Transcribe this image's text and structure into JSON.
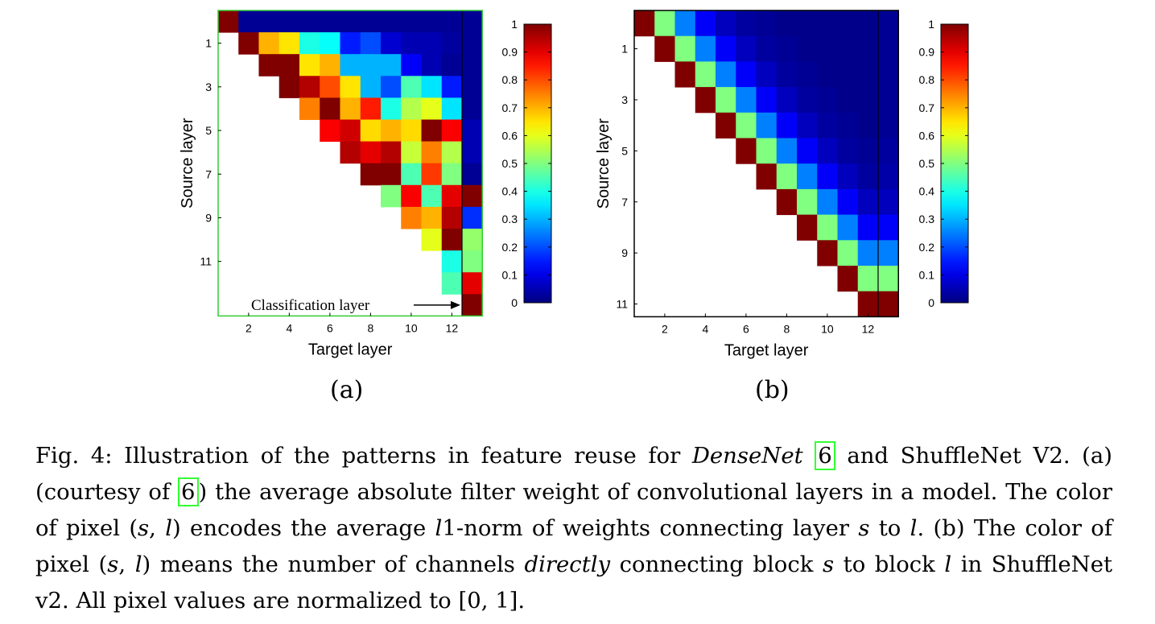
{
  "chart_data": [
    {
      "type": "heatmap",
      "panel": "(a)",
      "xlabel": "Target layer",
      "ylabel": "Source layer",
      "x_ticks": [
        "2",
        "4",
        "6",
        "8",
        "10",
        "12"
      ],
      "y_ticks": [
        "1",
        "3",
        "5",
        "7",
        "9",
        "11"
      ],
      "colorbar": {
        "min": 0,
        "max": 1,
        "ticks": [
          "0",
          "0.1",
          "0.2",
          "0.3",
          "0.4",
          "0.5",
          "0.6",
          "0.7",
          "0.8",
          "0.9",
          "1"
        ]
      },
      "annotation": "Classification layer",
      "values": [
        [
          1.0,
          0.02,
          0.02,
          0.02,
          0.02,
          0.02,
          0.02,
          0.02,
          0.02,
          0.02,
          0.02,
          0.02,
          0.02
        ],
        [
          null,
          1.0,
          0.7,
          0.65,
          0.4,
          0.38,
          0.15,
          0.2,
          0.08,
          0.05,
          0.05,
          0.03,
          0.02
        ],
        [
          null,
          null,
          1.0,
          1.0,
          0.65,
          0.7,
          0.3,
          0.3,
          0.3,
          0.12,
          0.05,
          0.02,
          0.02
        ],
        [
          null,
          null,
          null,
          1.0,
          0.95,
          0.8,
          0.65,
          0.3,
          0.2,
          0.45,
          0.35,
          0.15,
          0.02
        ],
        [
          null,
          null,
          null,
          null,
          0.75,
          1.0,
          0.7,
          0.85,
          0.4,
          0.55,
          0.6,
          0.35,
          0.02
        ],
        [
          null,
          null,
          null,
          null,
          null,
          0.88,
          0.92,
          0.66,
          0.7,
          0.66,
          1.0,
          0.88,
          0.05
        ],
        [
          null,
          null,
          null,
          null,
          null,
          null,
          0.95,
          0.9,
          0.95,
          0.57,
          0.75,
          0.55,
          0.05
        ],
        [
          null,
          null,
          null,
          null,
          null,
          null,
          null,
          1.0,
          1.0,
          0.45,
          0.82,
          0.5,
          0.02
        ],
        [
          null,
          null,
          null,
          null,
          null,
          null,
          null,
          null,
          0.5,
          0.88,
          0.45,
          0.9,
          1.0
        ],
        [
          null,
          null,
          null,
          null,
          null,
          null,
          null,
          null,
          null,
          0.75,
          0.7,
          0.95,
          0.17
        ],
        [
          null,
          null,
          null,
          null,
          null,
          null,
          null,
          null,
          null,
          null,
          0.6,
          1.0,
          0.52
        ],
        [
          null,
          null,
          null,
          null,
          null,
          null,
          null,
          null,
          null,
          null,
          null,
          0.4,
          0.5
        ],
        [
          null,
          null,
          null,
          null,
          null,
          null,
          null,
          null,
          null,
          null,
          null,
          0.45,
          0.9
        ],
        [
          null,
          null,
          null,
          null,
          null,
          null,
          null,
          null,
          null,
          null,
          null,
          null,
          1.0
        ]
      ]
    },
    {
      "type": "heatmap",
      "panel": "(b)",
      "xlabel": "Target layer",
      "ylabel": "Source layer",
      "x_ticks": [
        "2",
        "4",
        "6",
        "8",
        "10",
        "12"
      ],
      "y_ticks": [
        "1",
        "3",
        "5",
        "7",
        "9",
        "11"
      ],
      "colorbar": {
        "min": 0,
        "max": 1,
        "ticks": [
          "0",
          "0.1",
          "0.2",
          "0.3",
          "0.4",
          "0.5",
          "0.6",
          "0.7",
          "0.8",
          "0.9",
          "1"
        ]
      },
      "values": [
        [
          1.0,
          0.5,
          0.25,
          0.12,
          0.06,
          0.03,
          0.02,
          0.01,
          0.01,
          0.01,
          0.01,
          0.01,
          0.02
        ],
        [
          null,
          1.0,
          0.5,
          0.25,
          0.12,
          0.06,
          0.03,
          0.02,
          0.01,
          0.01,
          0.01,
          0.01,
          0.02
        ],
        [
          null,
          null,
          1.0,
          0.5,
          0.25,
          0.12,
          0.06,
          0.03,
          0.02,
          0.01,
          0.01,
          0.01,
          0.02
        ],
        [
          null,
          null,
          null,
          1.0,
          0.5,
          0.25,
          0.12,
          0.06,
          0.03,
          0.02,
          0.01,
          0.01,
          0.02
        ],
        [
          null,
          null,
          null,
          null,
          1.0,
          0.5,
          0.25,
          0.12,
          0.06,
          0.03,
          0.02,
          0.01,
          0.02
        ],
        [
          null,
          null,
          null,
          null,
          null,
          1.0,
          0.5,
          0.25,
          0.12,
          0.06,
          0.03,
          0.02,
          0.03
        ],
        [
          null,
          null,
          null,
          null,
          null,
          null,
          1.0,
          0.5,
          0.25,
          0.12,
          0.06,
          0.03,
          0.04
        ],
        [
          null,
          null,
          null,
          null,
          null,
          null,
          null,
          1.0,
          0.5,
          0.25,
          0.12,
          0.06,
          0.06
        ],
        [
          null,
          null,
          null,
          null,
          null,
          null,
          null,
          null,
          1.0,
          0.5,
          0.25,
          0.12,
          0.12
        ],
        [
          null,
          null,
          null,
          null,
          null,
          null,
          null,
          null,
          null,
          1.0,
          0.5,
          0.25,
          0.25
        ],
        [
          null,
          null,
          null,
          null,
          null,
          null,
          null,
          null,
          null,
          null,
          1.0,
          0.5,
          0.5
        ],
        [
          null,
          null,
          null,
          null,
          null,
          null,
          null,
          null,
          null,
          null,
          null,
          1.0,
          1.0
        ]
      ]
    }
  ],
  "panel_labels": {
    "a": "(a)",
    "b": "(b)"
  },
  "caption": {
    "fig": "Fig. 4:",
    "t1": " Illustration of the patterns in feature reuse for ",
    "densenet": "DenseNet",
    "ref1": "6",
    "t2": " and ShuffleNet V2. (a) (courtesy of ",
    "ref2": "6",
    "t3": ") the average absolute filter weight of convolutional layers in a model. The color of pixel (",
    "s1": "s",
    "comma1": ", ",
    "l1": "l",
    "t4": ") encodes the average ",
    "l2": "l",
    "t5": "1-norm of weights connecting layer ",
    "s2": "s",
    "t6": " to ",
    "l3": "l",
    "t7": ". (b) The color of pixel (",
    "s3": "s",
    "comma2": ", ",
    "l4": "l",
    "t8": ") means the number of channels ",
    "directly": "directly",
    "t9": " connecting block ",
    "s4": "s",
    "t10": " to block ",
    "l5": "l",
    "t11": " in ShuffleNet v2. All pixel values are normalized to [0, 1]."
  }
}
